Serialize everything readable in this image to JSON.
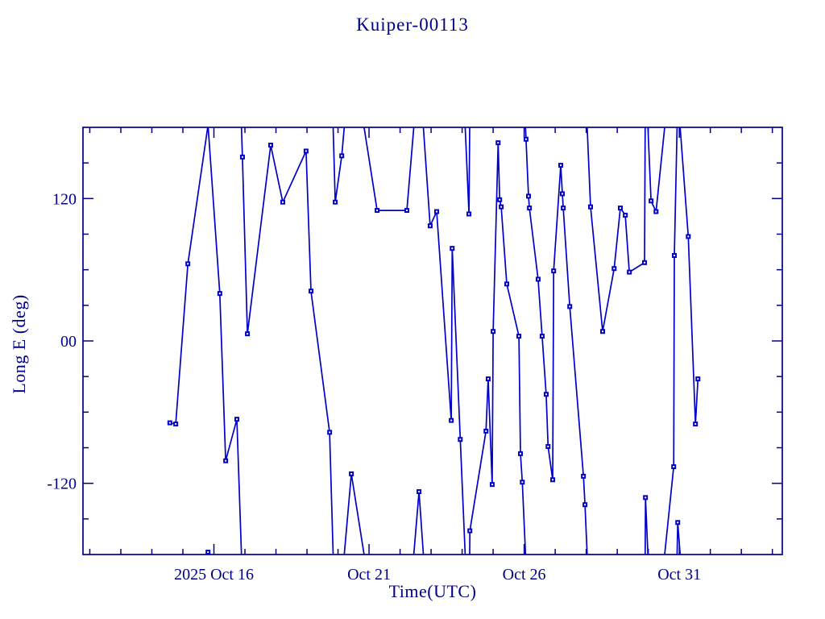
{
  "window": {
    "background": "#ffffff"
  },
  "chart_data": {
    "type": "line",
    "title": "Kuiper-00113",
    "xlabel": "Time(UTC)",
    "ylabel": "Long E (deg)",
    "legend": "none",
    "grid": "off",
    "x_unit": "day of month, 2025 Oct (values > 31 run into Nov)",
    "xlim": [
      11.78,
      34.32
    ],
    "ylim": [
      -180,
      180
    ],
    "wrap_at_deg": 180,
    "x_major_ticks": [
      {
        "t": 16,
        "label": "2025 Oct 16"
      },
      {
        "t": 21,
        "label": "Oct 21"
      },
      {
        "t": 26,
        "label": "Oct 26"
      },
      {
        "t": 31,
        "label": "Oct 31"
      }
    ],
    "x_minor_step_days": 1,
    "y_major_ticks": [
      {
        "v": 120,
        "label": "120"
      },
      {
        "v": 0,
        "label": "00"
      },
      {
        "v": -120,
        "label": "-120"
      }
    ],
    "y_minor_step_deg": 30,
    "colors": {
      "frame": "#000087",
      "text": "#000087",
      "series": "#0000C8",
      "marker_hole": "#ffffff"
    },
    "series": [
      {
        "name": "Long E",
        "marker": "filled-square",
        "points": [
          [
            14.58,
            -69
          ],
          [
            14.77,
            -70
          ],
          [
            15.16,
            65
          ],
          [
            15.81,
            -178
          ],
          [
            16.19,
            40
          ],
          [
            16.38,
            -101
          ],
          [
            16.74,
            -66
          ],
          [
            16.92,
            155
          ],
          [
            17.08,
            6
          ],
          [
            17.83,
            165
          ],
          [
            18.22,
            117
          ],
          [
            18.97,
            160
          ],
          [
            19.13,
            42
          ],
          [
            19.73,
            -77
          ],
          [
            19.91,
            117
          ],
          [
            20.12,
            156
          ],
          [
            20.43,
            -112
          ],
          [
            21.26,
            110
          ],
          [
            22.22,
            110
          ],
          [
            22.61,
            -127
          ],
          [
            22.97,
            97
          ],
          [
            23.18,
            109
          ],
          [
            23.65,
            -67
          ],
          [
            23.68,
            78
          ],
          [
            23.94,
            -83
          ],
          [
            24.22,
            107
          ],
          [
            24.25,
            -160
          ],
          [
            24.77,
            -76
          ],
          [
            24.84,
            -32
          ],
          [
            24.97,
            -121
          ],
          [
            25.0,
            8
          ],
          [
            25.16,
            167
          ],
          [
            25.21,
            119
          ],
          [
            25.26,
            113
          ],
          [
            25.44,
            48
          ],
          [
            25.83,
            4
          ],
          [
            25.88,
            -95
          ],
          [
            25.94,
            -119
          ],
          [
            26.06,
            170
          ],
          [
            26.14,
            122
          ],
          [
            26.17,
            112
          ],
          [
            26.45,
            52
          ],
          [
            26.58,
            4
          ],
          [
            26.71,
            -45
          ],
          [
            26.77,
            -89
          ],
          [
            26.92,
            -117
          ],
          [
            26.95,
            59
          ],
          [
            27.18,
            148
          ],
          [
            27.23,
            124
          ],
          [
            27.26,
            112
          ],
          [
            27.47,
            29
          ],
          [
            27.91,
            -114
          ],
          [
            27.96,
            -138
          ],
          [
            28.14,
            113
          ],
          [
            28.53,
            8
          ],
          [
            28.9,
            61
          ],
          [
            29.1,
            112
          ],
          [
            29.26,
            106
          ],
          [
            29.39,
            58
          ],
          [
            29.88,
            66
          ],
          [
            29.91,
            -132
          ],
          [
            30.09,
            118
          ],
          [
            30.25,
            109
          ],
          [
            30.82,
            -106
          ],
          [
            30.84,
            72
          ],
          [
            30.95,
            -153
          ],
          [
            31.29,
            88
          ],
          [
            31.52,
            -70
          ],
          [
            31.6,
            -32
          ]
        ]
      }
    ]
  }
}
